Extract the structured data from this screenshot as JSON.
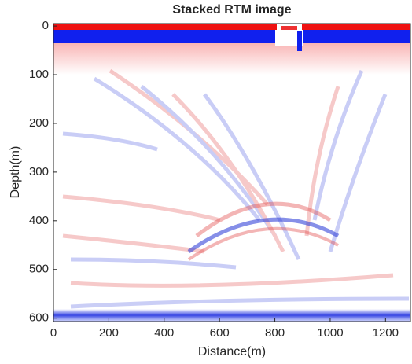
{
  "chart_data": {
    "type": "heatmap",
    "title": "Stacked RTM image",
    "x_label": "Distance(m)",
    "y_label": "Depth(m)",
    "xlim": [
      0,
      1290
    ],
    "ylim": [
      -5,
      607
    ],
    "y_inverted": true,
    "xticks": [
      0,
      200,
      400,
      600,
      800,
      1000,
      1200
    ],
    "yticks": [
      0,
      100,
      200,
      300,
      400,
      500,
      600
    ]
  }
}
